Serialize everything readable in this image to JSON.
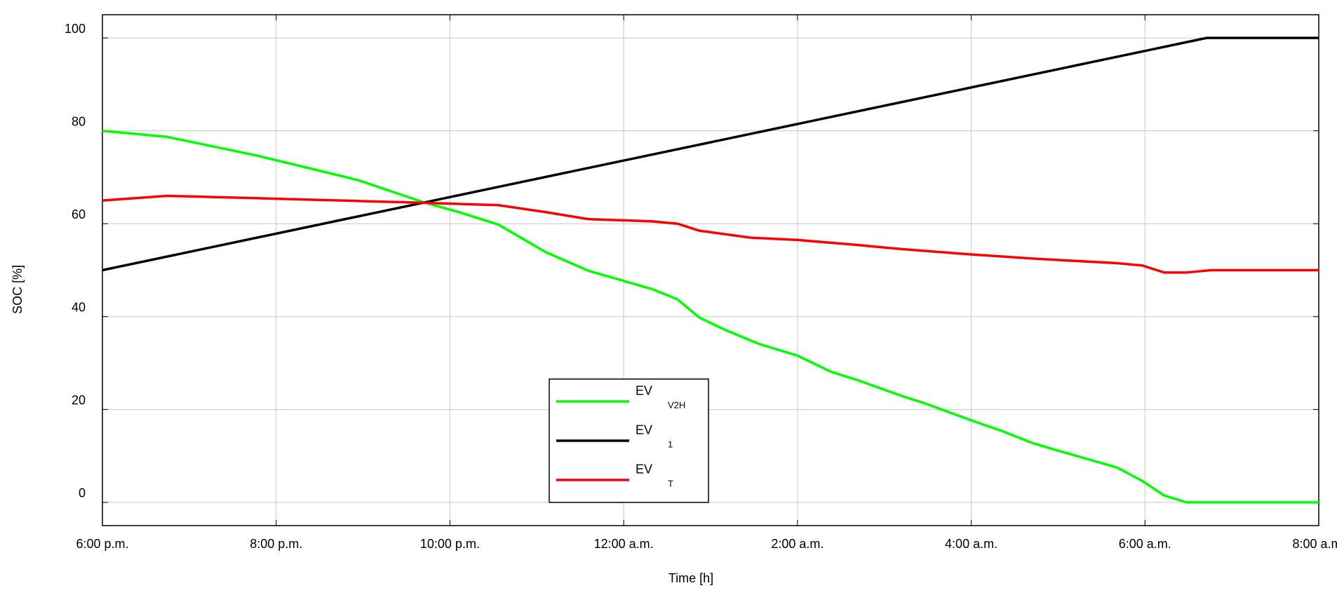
{
  "chart_data": {
    "type": "line",
    "xlabel": "Time [h]",
    "ylabel": "SOC [%]",
    "xlim": [
      18,
      32
    ],
    "xticks": [
      {
        "value": 18,
        "label": "6:00 p.m."
      },
      {
        "value": 20,
        "label": "8:00 p.m."
      },
      {
        "value": 22,
        "label": "10:00 p.m."
      },
      {
        "value": 24,
        "label": "12:00 a.m."
      },
      {
        "value": 26,
        "label": "2:00 a.m."
      },
      {
        "value": 28,
        "label": "4:00 a.m."
      },
      {
        "value": 30,
        "label": "6:00 a.m."
      },
      {
        "value": 32,
        "label": "8:00 a.m."
      }
    ],
    "ylim": [
      -5,
      105
    ],
    "yticks": [
      0,
      20,
      40,
      60,
      80,
      100
    ],
    "grid": true,
    "legend": "lower center",
    "series": [
      {
        "name": "EV",
        "subscript": "V2H",
        "color": "#00ff00",
        "x": [
          18,
          18.74,
          19.08,
          19.77,
          20.26,
          20.94,
          21.7,
          22.12,
          22.56,
          23.1,
          23.59,
          24.33,
          24.62,
          24.87,
          25.16,
          25.56,
          26.0,
          26.39,
          26.68,
          27.22,
          27.47,
          28.01,
          28.35,
          28.7,
          28.99,
          29.68,
          29.97,
          30.22,
          30.48,
          32
        ],
        "values": [
          80,
          78.7,
          77.4,
          74.7,
          72.5,
          69.4,
          64.6,
          62.4,
          59.8,
          53.9,
          49.9,
          45.9,
          43.7,
          39.8,
          37.2,
          34.1,
          31.6,
          28.1,
          26.4,
          22.8,
          21.3,
          17.6,
          15.4,
          12.8,
          11.2,
          7.5,
          4.6,
          1.5,
          0,
          0
        ]
      },
      {
        "name": "EV",
        "subscript": "1",
        "color": "#000000",
        "x": [
          18,
          30.71,
          32
        ],
        "values": [
          50,
          100,
          100
        ]
      },
      {
        "name": "EV",
        "subscript": "T",
        "color": "#ff0000",
        "x": [
          18,
          18.74,
          19.77,
          20.75,
          21.7,
          22.56,
          23.1,
          23.59,
          24.33,
          24.62,
          24.87,
          25.46,
          26.0,
          26.64,
          27.22,
          27.91,
          28.7,
          29.68,
          29.97,
          30.22,
          30.48,
          30.76,
          32
        ],
        "values": [
          65,
          66,
          65.5,
          65,
          64.5,
          64,
          62.5,
          61,
          60.5,
          60,
          58.5,
          57,
          56.5,
          55.5,
          54.5,
          53.5,
          52.5,
          51.5,
          51,
          49.5,
          49.5,
          50,
          50
        ]
      }
    ]
  }
}
